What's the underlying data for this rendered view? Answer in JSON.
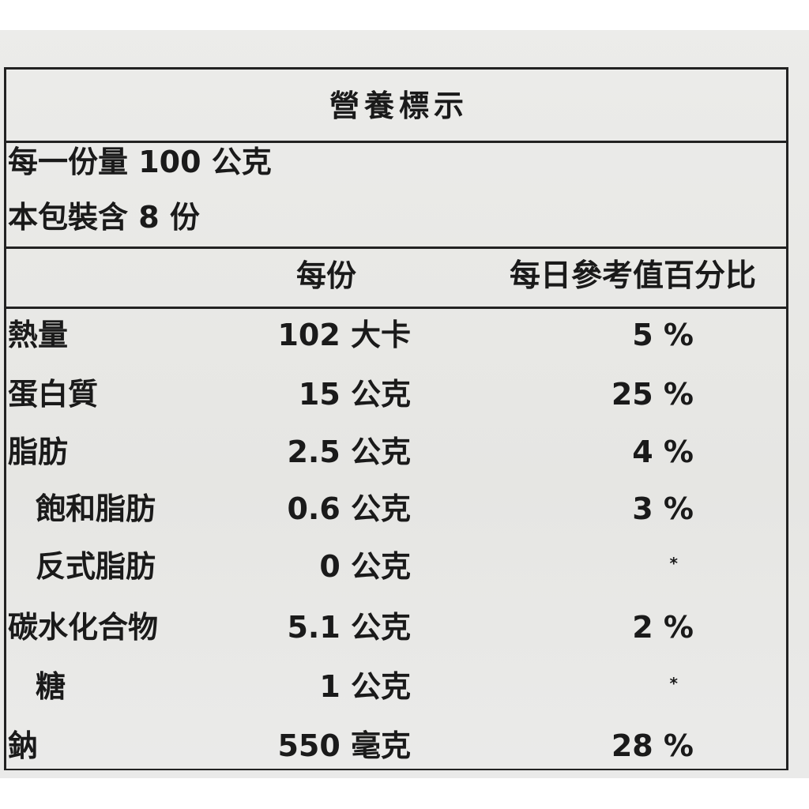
{
  "label": {
    "title": "營養標示",
    "serving": [
      "每一份量 100 公克",
      "本包裝含 8 份"
    ],
    "columns": [
      "每份",
      "每日參考值百分比"
    ],
    "rows": [
      [
        "熱量",
        "102 大卡",
        "5 %"
      ],
      [
        "蛋白質",
        "15 公克",
        "25 %"
      ],
      [
        "脂肪",
        "2.5 公克",
        "4 %"
      ],
      [
        "飽和脂肪",
        "0.6 公克",
        "3 %"
      ],
      [
        "反式脂肪",
        "0 公克",
        "*"
      ],
      [
        "碳水化合物",
        "5.1 公克",
        "2 %"
      ],
      [
        "糖",
        "1 公克",
        "*"
      ],
      [
        "鈉",
        "550 毫克",
        "28 %"
      ]
    ]
  }
}
